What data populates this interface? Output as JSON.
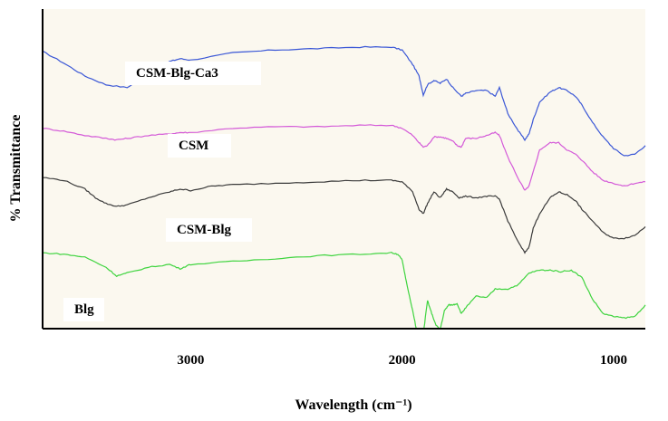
{
  "chart_data": {
    "type": "line",
    "title": "",
    "xlabel": "Wavelength (cm⁻¹)",
    "ylabel": "% Transmittance",
    "x_ticks": [
      3000,
      2000,
      1000
    ],
    "xlim": [
      3700,
      850
    ],
    "x_reversed": true,
    "legend": "inline labels beside each trace",
    "grid": false,
    "background": "#fbf8ef",
    "series": [
      {
        "name": "CSM-Blg-Ca3",
        "color": "#3a57d6",
        "offset": 0.62,
        "points": [
          [
            3700,
            0.25
          ],
          [
            3600,
            0.17
          ],
          [
            3500,
            0.08
          ],
          [
            3400,
            0.02
          ],
          [
            3300,
            0.0
          ],
          [
            3200,
            0.1
          ],
          [
            3100,
            0.18
          ],
          [
            3050,
            0.2
          ],
          [
            3000,
            0.19
          ],
          [
            2800,
            0.24
          ],
          [
            2600,
            0.26
          ],
          [
            2400,
            0.27
          ],
          [
            2200,
            0.28
          ],
          [
            2050,
            0.28
          ],
          [
            2000,
            0.26
          ],
          [
            1950,
            0.16
          ],
          [
            1920,
            0.08
          ],
          [
            1900,
            -0.05
          ],
          [
            1880,
            0.02
          ],
          [
            1850,
            0.05
          ],
          [
            1820,
            0.03
          ],
          [
            1790,
            0.06
          ],
          [
            1760,
            0.0
          ],
          [
            1720,
            -0.06
          ],
          [
            1700,
            -0.04
          ],
          [
            1650,
            -0.02
          ],
          [
            1600,
            -0.02
          ],
          [
            1560,
            -0.06
          ],
          [
            1540,
            0.0
          ],
          [
            1500,
            -0.18
          ],
          [
            1450,
            -0.3
          ],
          [
            1420,
            -0.36
          ],
          [
            1400,
            -0.32
          ],
          [
            1380,
            -0.22
          ],
          [
            1350,
            -0.1
          ],
          [
            1300,
            -0.03
          ],
          [
            1260,
            0.0
          ],
          [
            1220,
            -0.02
          ],
          [
            1180,
            -0.06
          ],
          [
            1150,
            -0.12
          ],
          [
            1100,
            -0.24
          ],
          [
            1050,
            -0.34
          ],
          [
            1000,
            -0.42
          ],
          [
            950,
            -0.47
          ],
          [
            900,
            -0.46
          ],
          [
            850,
            -0.4
          ]
        ]
      },
      {
        "name": "CSM",
        "color": "#d45ad8",
        "offset": 0.34,
        "points": [
          [
            3700,
            0.0
          ],
          [
            3600,
            -0.02
          ],
          [
            3500,
            -0.05
          ],
          [
            3400,
            -0.07
          ],
          [
            3350,
            -0.08
          ],
          [
            3300,
            -0.07
          ],
          [
            3200,
            -0.05
          ],
          [
            3100,
            -0.04
          ],
          [
            3050,
            -0.03
          ],
          [
            3000,
            -0.03
          ],
          [
            2800,
            0.0
          ],
          [
            2600,
            0.01
          ],
          [
            2400,
            0.01
          ],
          [
            2200,
            0.02
          ],
          [
            2050,
            0.02
          ],
          [
            2000,
            0.0
          ],
          [
            1950,
            -0.05
          ],
          [
            1920,
            -0.1
          ],
          [
            1900,
            -0.13
          ],
          [
            1880,
            -0.12
          ],
          [
            1850,
            -0.06
          ],
          [
            1820,
            -0.06
          ],
          [
            1790,
            -0.07
          ],
          [
            1760,
            -0.09
          ],
          [
            1740,
            -0.12
          ],
          [
            1720,
            -0.13
          ],
          [
            1700,
            -0.07
          ],
          [
            1650,
            -0.07
          ],
          [
            1600,
            -0.05
          ],
          [
            1560,
            -0.03
          ],
          [
            1540,
            -0.05
          ],
          [
            1500,
            -0.2
          ],
          [
            1450,
            -0.35
          ],
          [
            1420,
            -0.43
          ],
          [
            1400,
            -0.4
          ],
          [
            1380,
            -0.3
          ],
          [
            1350,
            -0.15
          ],
          [
            1300,
            -0.1
          ],
          [
            1260,
            -0.1
          ],
          [
            1220,
            -0.15
          ],
          [
            1180,
            -0.18
          ],
          [
            1150,
            -0.22
          ],
          [
            1100,
            -0.3
          ],
          [
            1050,
            -0.36
          ],
          [
            1000,
            -0.38
          ],
          [
            950,
            -0.4
          ],
          [
            900,
            -0.38
          ],
          [
            850,
            -0.37
          ]
        ]
      },
      {
        "name": "CSM-Blg",
        "color": "#3a3a3a",
        "offset": 0.0,
        "points": [
          [
            3700,
            0.0
          ],
          [
            3600,
            -0.02
          ],
          [
            3500,
            -0.08
          ],
          [
            3450,
            -0.14
          ],
          [
            3400,
            -0.18
          ],
          [
            3350,
            -0.2
          ],
          [
            3300,
            -0.19
          ],
          [
            3200,
            -0.14
          ],
          [
            3100,
            -0.1
          ],
          [
            3050,
            -0.08
          ],
          [
            3000,
            -0.09
          ],
          [
            2900,
            -0.06
          ],
          [
            2800,
            -0.05
          ],
          [
            2600,
            -0.04
          ],
          [
            2400,
            -0.03
          ],
          [
            2200,
            -0.02
          ],
          [
            2050,
            -0.02
          ],
          [
            2000,
            -0.03
          ],
          [
            1950,
            -0.1
          ],
          [
            1920,
            -0.22
          ],
          [
            1900,
            -0.25
          ],
          [
            1880,
            -0.18
          ],
          [
            1850,
            -0.1
          ],
          [
            1820,
            -0.14
          ],
          [
            1790,
            -0.08
          ],
          [
            1760,
            -0.1
          ],
          [
            1730,
            -0.14
          ],
          [
            1700,
            -0.13
          ],
          [
            1650,
            -0.14
          ],
          [
            1600,
            -0.13
          ],
          [
            1560,
            -0.13
          ],
          [
            1540,
            -0.15
          ],
          [
            1500,
            -0.3
          ],
          [
            1450,
            -0.45
          ],
          [
            1420,
            -0.52
          ],
          [
            1400,
            -0.48
          ],
          [
            1380,
            -0.35
          ],
          [
            1350,
            -0.25
          ],
          [
            1300,
            -0.14
          ],
          [
            1260,
            -0.1
          ],
          [
            1220,
            -0.12
          ],
          [
            1180,
            -0.16
          ],
          [
            1150,
            -0.22
          ],
          [
            1100,
            -0.3
          ],
          [
            1050,
            -0.38
          ],
          [
            1000,
            -0.42
          ],
          [
            950,
            -0.42
          ],
          [
            900,
            -0.4
          ],
          [
            850,
            -0.34
          ]
        ]
      },
      {
        "name": "Blg",
        "color": "#3fd43f",
        "offset": -0.52,
        "points": [
          [
            3700,
            0.0
          ],
          [
            3600,
            -0.01
          ],
          [
            3500,
            -0.03
          ],
          [
            3400,
            -0.1
          ],
          [
            3350,
            -0.16
          ],
          [
            3300,
            -0.14
          ],
          [
            3200,
            -0.1
          ],
          [
            3100,
            -0.08
          ],
          [
            3050,
            -0.11
          ],
          [
            3000,
            -0.08
          ],
          [
            2800,
            -0.06
          ],
          [
            2600,
            -0.04
          ],
          [
            2400,
            -0.02
          ],
          [
            2200,
            -0.01
          ],
          [
            2050,
            0.0
          ],
          [
            2020,
            -0.01
          ],
          [
            2000,
            -0.05
          ],
          [
            1980,
            -0.2
          ],
          [
            1950,
            -0.4
          ],
          [
            1930,
            -0.55
          ],
          [
            1920,
            -0.6
          ],
          [
            1900,
            -0.56
          ],
          [
            1880,
            -0.33
          ],
          [
            1860,
            -0.42
          ],
          [
            1840,
            -0.5
          ],
          [
            1820,
            -0.53
          ],
          [
            1800,
            -0.4
          ],
          [
            1780,
            -0.36
          ],
          [
            1760,
            -0.36
          ],
          [
            1740,
            -0.35
          ],
          [
            1720,
            -0.42
          ],
          [
            1700,
            -0.38
          ],
          [
            1650,
            -0.3
          ],
          [
            1600,
            -0.31
          ],
          [
            1560,
            -0.25
          ],
          [
            1500,
            -0.25
          ],
          [
            1450,
            -0.22
          ],
          [
            1400,
            -0.14
          ],
          [
            1350,
            -0.12
          ],
          [
            1300,
            -0.12
          ],
          [
            1250,
            -0.13
          ],
          [
            1200,
            -0.12
          ],
          [
            1150,
            -0.17
          ],
          [
            1100,
            -0.32
          ],
          [
            1050,
            -0.42
          ],
          [
            1000,
            -0.44
          ],
          [
            950,
            -0.45
          ],
          [
            900,
            -0.44
          ],
          [
            850,
            -0.36
          ]
        ]
      }
    ]
  }
}
